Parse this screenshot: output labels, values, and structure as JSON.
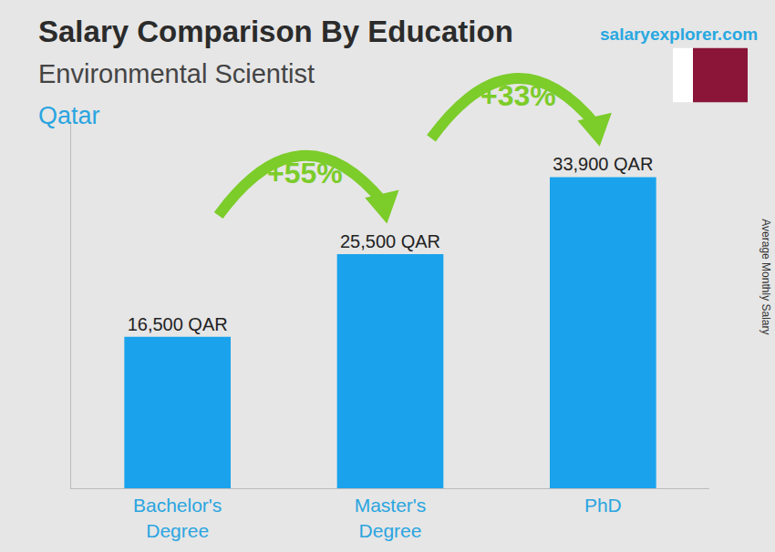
{
  "chart_data": {
    "type": "bar",
    "title": "Salary Comparison By Education",
    "subtitle": "Environmental Scientist",
    "country": "Qatar",
    "source": "salaryexplorer.com",
    "y_label": "Average Monthly Salary",
    "categories": [
      "Bachelor's Degree",
      "Master's Degree",
      "PhD"
    ],
    "values": [
      16500,
      25500,
      33900
    ],
    "value_labels": [
      "16,500 QAR",
      "25,500 QAR",
      "33,900 QAR"
    ],
    "color": "#1aa3ec",
    "ylim": [
      0,
      40000
    ],
    "grid": false,
    "data_labels": true,
    "tick_labels": "x",
    "annotations": [
      {
        "text": "+55%",
        "from": "Bachelor's Degree",
        "to": "Master's Degree"
      },
      {
        "text": "+33%",
        "from": "Master's Degree",
        "to": "PhD"
      }
    ]
  }
}
